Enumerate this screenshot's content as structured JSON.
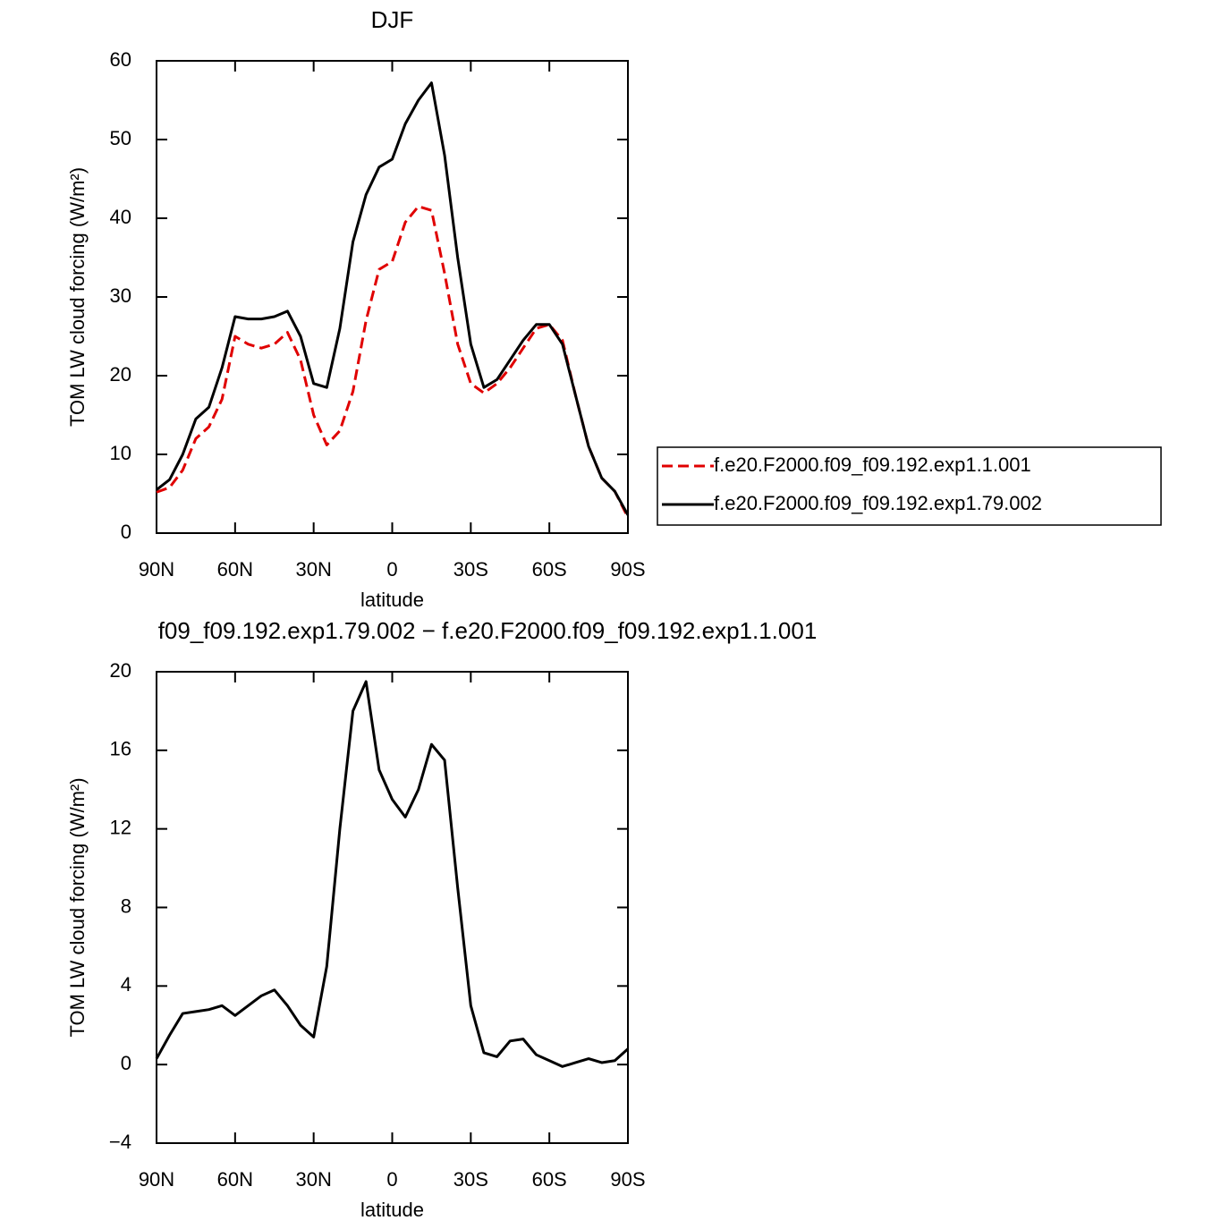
{
  "chart_data": [
    {
      "type": "line",
      "title": "DJF",
      "xlabel": "latitude",
      "ylabel": "TOM LW cloud forcing (W/m²)",
      "x": [
        90,
        85,
        80,
        75,
        70,
        65,
        60,
        55,
        50,
        45,
        40,
        35,
        30,
        25,
        20,
        15,
        10,
        5,
        0,
        -5,
        -10,
        -15,
        -20,
        -25,
        -30,
        -35,
        -40,
        -45,
        -50,
        -55,
        -60,
        -65,
        -70,
        -75,
        -80,
        -85,
        -90
      ],
      "series": [
        {
          "name": "f.e20.F2000.f09_f09.192.exp1.1.001",
          "color": "#e00000",
          "dash": true,
          "values": [
            5.2,
            5.8,
            8,
            12,
            13.5,
            17,
            25,
            24,
            23.5,
            24,
            25.5,
            22,
            15,
            11.2,
            13,
            18,
            27,
            33.5,
            34.5,
            39.5,
            41.5,
            41,
            33,
            24,
            19,
            17.8,
            19,
            21,
            23.5,
            26,
            26.5,
            24.5,
            17.5,
            11,
            7,
            5.3,
            2
          ]
        },
        {
          "name": "f.e20.F2000.f09_f09.192.exp1.79.002",
          "color": "#000000",
          "dash": false,
          "values": [
            5.5,
            6.8,
            10,
            14.5,
            16,
            21,
            27.5,
            27.2,
            27.2,
            27.5,
            28.2,
            25,
            19,
            18.5,
            26,
            37,
            43,
            46.5,
            47.5,
            52,
            55,
            57.2,
            48,
            35,
            24,
            18.5,
            19.5,
            22,
            24.5,
            26.5,
            26.5,
            24,
            17.5,
            11,
            7,
            5.3,
            2.3
          ]
        }
      ],
      "xlim": [
        90,
        -90
      ],
      "xticks": [
        {
          "value": 90,
          "label": "90N"
        },
        {
          "value": 60,
          "label": "60N"
        },
        {
          "value": 30,
          "label": "30N"
        },
        0,
        {
          "value": -30,
          "label": "30S"
        },
        {
          "value": -60,
          "label": "60S"
        },
        {
          "value": -90,
          "label": "90S"
        }
      ],
      "ylim": [
        0,
        60
      ],
      "yticks": [
        0,
        10,
        20,
        30,
        40,
        50,
        60
      ],
      "legend": "right"
    },
    {
      "type": "line",
      "title": "f09_f09.192.exp1.79.002 − f.e20.F2000.f09_f09.192.exp1.1.001",
      "xlabel": "latitude",
      "ylabel": "TOM LW cloud forcing (W/m²)",
      "x": [
        90,
        85,
        80,
        75,
        70,
        65,
        60,
        55,
        50,
        45,
        40,
        35,
        30,
        25,
        20,
        15,
        10,
        5,
        0,
        -5,
        -10,
        -15,
        -20,
        -25,
        -30,
        -35,
        -40,
        -45,
        -50,
        -55,
        -60,
        -65,
        -70,
        -75,
        -80,
        -85,
        -90
      ],
      "series": [
        {
          "color": "#000000",
          "dash": false,
          "values": [
            0.3,
            1.5,
            2.6,
            2.7,
            2.8,
            3.0,
            2.5,
            3.0,
            3.5,
            3.8,
            3.0,
            2.0,
            1.4,
            5,
            12,
            18,
            19.5,
            15,
            13.5,
            12.6,
            14,
            16.3,
            15.5,
            9,
            3,
            0.6,
            0.4,
            1.2,
            1.3,
            0.5,
            0.2,
            -0.1,
            0.1,
            0.3,
            0.1,
            0.2,
            0.8
          ]
        }
      ],
      "xlim": [
        90,
        -90
      ],
      "xticks": [
        {
          "value": 90,
          "label": "90N"
        },
        {
          "value": 60,
          "label": "60N"
        },
        {
          "value": 30,
          "label": "30N"
        },
        0,
        {
          "value": -30,
          "label": "30S"
        },
        {
          "value": -60,
          "label": "60S"
        },
        {
          "value": -90,
          "label": "90S"
        }
      ],
      "ylim": [
        -4,
        20
      ],
      "yticks": [
        {
          "value": -4,
          "label": "−4"
        },
        0,
        4,
        8,
        12,
        16,
        20
      ]
    }
  ]
}
